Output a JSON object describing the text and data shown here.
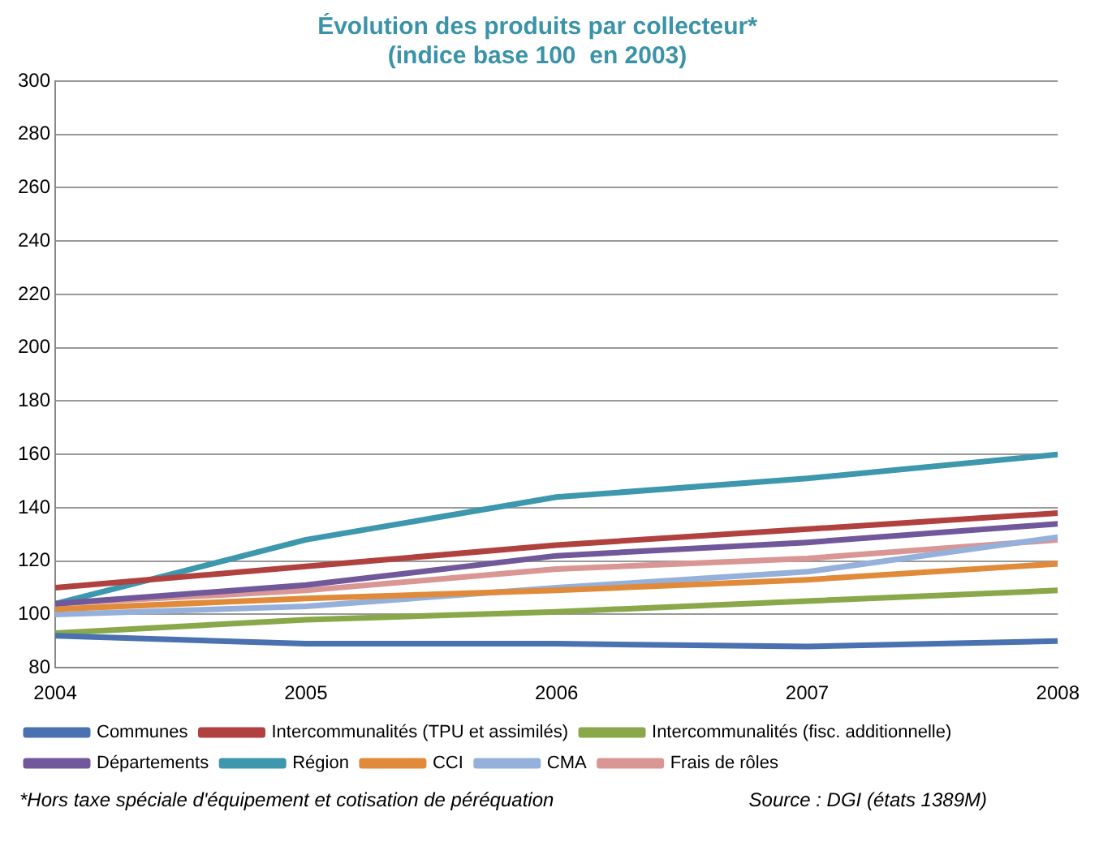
{
  "chart_data": {
    "type": "line",
    "title": "Évolution des produits par collecteur*",
    "subtitle": "(indice base 100  en 2003)",
    "x": [
      2004,
      2005,
      2006,
      2007,
      2008
    ],
    "xlim": [
      2004,
      2008
    ],
    "xticks": [
      2004,
      2005,
      2006,
      2007,
      2008
    ],
    "ylim": [
      80,
      300
    ],
    "yticks": [
      80,
      100,
      120,
      140,
      160,
      180,
      200,
      220,
      240,
      260,
      280,
      300
    ],
    "grid": "y",
    "legend": "bottom",
    "marker": "none",
    "line_style": "solid",
    "series": [
      {
        "name": "Communes",
        "color": "#4a72b0",
        "values": [
          92,
          89,
          89,
          88,
          90
        ]
      },
      {
        "name": "Intercommunalités (TPU et assimilés)",
        "color": "#b0413e",
        "values": [
          110,
          118,
          126,
          132,
          138
        ]
      },
      {
        "name": "Intercommunalités (fisc. additionnelle)",
        "color": "#88a84a",
        "values": [
          93,
          98,
          101,
          105,
          109
        ]
      },
      {
        "name": "Départements",
        "color": "#71589a",
        "values": [
          104,
          111,
          122,
          127,
          134
        ]
      },
      {
        "name": "Région",
        "color": "#3d97ad",
        "values": [
          104,
          128,
          144,
          151,
          160
        ]
      },
      {
        "name": "CCI",
        "color": "#e08a3a",
        "values": [
          102,
          106,
          109,
          113,
          119
        ]
      },
      {
        "name": "CMA",
        "color": "#95b0da",
        "values": [
          100,
          103,
          110,
          116,
          129
        ]
      },
      {
        "name": "Frais de rôles",
        "color": "#d99694",
        "values": [
          104,
          109,
          117,
          121,
          128
        ]
      }
    ],
    "annotations": [
      "*Hors taxe spéciale d'équipement et cotisation de péréquation",
      "Source : DGI (états 1389M)"
    ]
  }
}
